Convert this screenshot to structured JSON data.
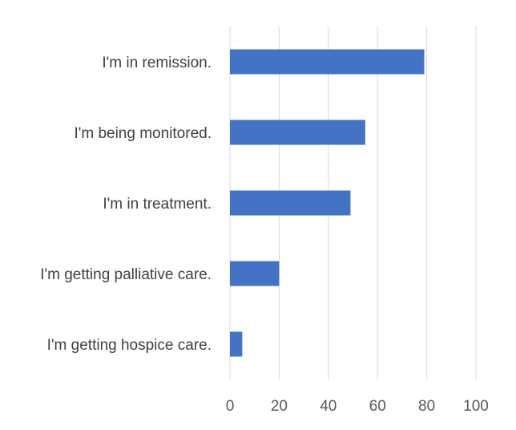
{
  "chart_data": {
    "type": "bar",
    "orientation": "horizontal",
    "title": "",
    "xlabel": "",
    "ylabel": "",
    "categories": [
      "I'm in remission.",
      "I'm being monitored.",
      "I'm in treatment.",
      "I'm getting palliative care.",
      "I'm getting hospice care."
    ],
    "values": [
      79,
      55,
      49,
      20,
      5
    ],
    "xlim": [
      0,
      100
    ],
    "xticks": [
      "0",
      "20",
      "40",
      "60",
      "80",
      "100"
    ],
    "grid": true,
    "legend": "none",
    "bar_color": "#4472C4"
  }
}
